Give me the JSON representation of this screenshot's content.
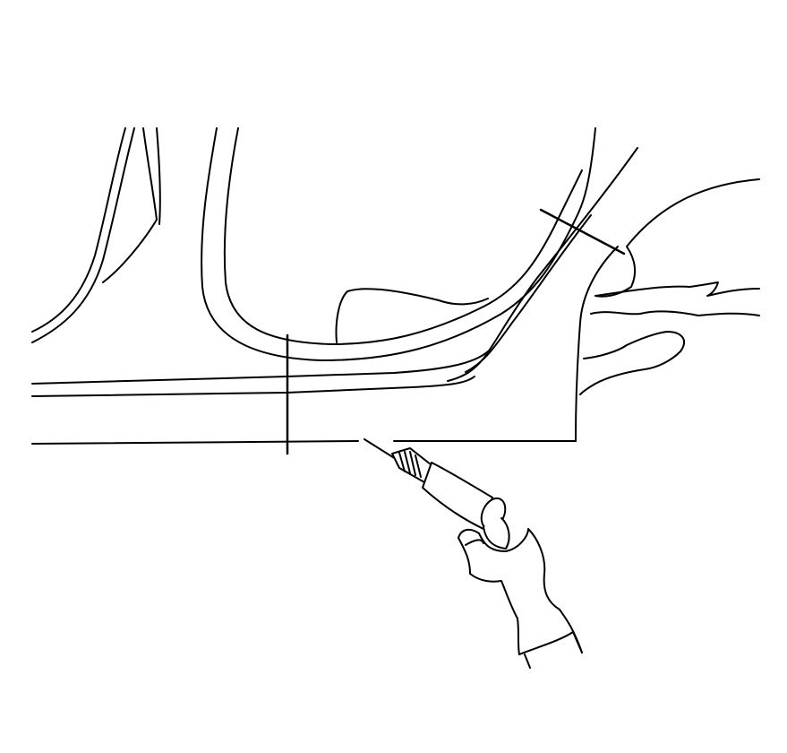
{
  "figure": {
    "subject": "rocker-panel-cut-with-drill",
    "colors": {
      "line": "#000000",
      "background": "#ffffff"
    }
  }
}
